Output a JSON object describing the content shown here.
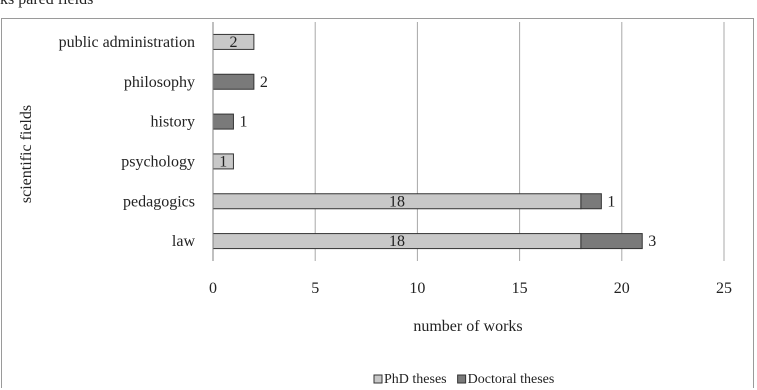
{
  "caption_fragment": "ks   pared    fields",
  "chart_data": {
    "type": "bar",
    "orientation": "horizontal",
    "stacked": true,
    "categories": [
      "public administration",
      "philosophy",
      "history",
      "psychology",
      "pedagogics",
      "law"
    ],
    "series": [
      {
        "name": "PhD theses",
        "color": "#c8c8c8",
        "values": [
          2,
          0,
          0,
          1,
          18,
          18
        ]
      },
      {
        "name": "Doctoral theses",
        "color": "#7a7a7a",
        "values": [
          0,
          2,
          1,
          0,
          1,
          3
        ]
      }
    ],
    "data_labels": [
      {
        "category": "public administration",
        "series": "PhD theses",
        "text": "2",
        "placement": "inside"
      },
      {
        "category": "philosophy",
        "series": "Doctoral theses",
        "text": "2",
        "placement": "outside"
      },
      {
        "category": "history",
        "series": "Doctoral theses",
        "text": "1",
        "placement": "outside"
      },
      {
        "category": "psychology",
        "series": "PhD theses",
        "text": "1",
        "placement": "inside"
      },
      {
        "category": "pedagogics",
        "series": "PhD theses",
        "text": "18",
        "placement": "inside"
      },
      {
        "category": "pedagogics",
        "series": "Doctoral theses",
        "text": "1",
        "placement": "outside"
      },
      {
        "category": "law",
        "series": "PhD theses",
        "text": "18",
        "placement": "inside"
      },
      {
        "category": "law",
        "series": "Doctoral theses",
        "text": "3",
        "placement": "outside"
      }
    ],
    "xlim": [
      0,
      25
    ],
    "xticks": [
      0,
      5,
      10,
      15,
      20,
      25
    ],
    "xlabel": "number of works",
    "ylabel": "scientific fields",
    "grid": "vertical",
    "legend_position": "bottom"
  }
}
